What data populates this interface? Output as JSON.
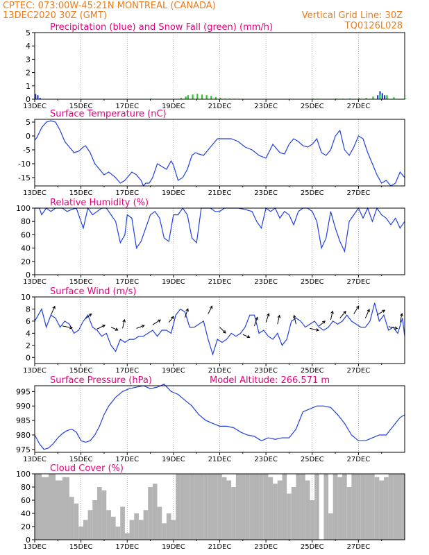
{
  "header": {
    "line1": "CPTEC:   073:00W-45:21N   MONTREAL (CANADA)",
    "line2_left": "13DEC2020 30Z (GMT)",
    "line2_right": "Vertical Grid Line: 30Z",
    "line3_right": "TQ0126L028"
  },
  "colors": {
    "header": "#e87d1e",
    "title": "#e6007e",
    "line": "#1f3fe0",
    "snow": "#22cc22",
    "precip": "#1f3fe0",
    "cloud": "#b4b4b4"
  },
  "chart_data": [
    {
      "id": "precip",
      "type": "bar",
      "title": "Precipitation (blue) and Snow Fall (green) (mm/h)",
      "ylim": [
        0,
        5
      ],
      "yticks": [
        0,
        1,
        2,
        3,
        4,
        5
      ],
      "xticks": [
        "13DEC",
        "15DEC",
        "17DEC",
        "19DEC",
        "21DEC",
        "23DEC",
        "25DEC",
        "27DEC"
      ],
      "series": [
        {
          "name": "Precipitation",
          "color": "#1f3fe0",
          "x": [
            0.0,
            0.1,
            0.2,
            14.8,
            14.9,
            15.0,
            15.1,
            15.2
          ],
          "values": [
            0.4,
            0.3,
            0.1,
            0.3,
            0.6,
            0.45,
            0.3,
            0.1
          ]
        },
        {
          "name": "Snow Fall",
          "color": "#22cc22",
          "x": [
            5.0,
            5.2,
            6.3,
            6.5,
            6.6,
            6.8,
            7.0,
            7.2,
            7.4,
            7.6,
            7.8,
            8.0,
            8.2,
            8.4,
            8.6,
            8.8,
            9.0,
            11.0,
            11.2,
            12.0,
            12.2,
            13.0,
            13.3,
            13.6,
            14.0,
            14.3,
            14.6,
            14.9,
            15.2,
            15.5,
            16.0
          ],
          "values": [
            0.05,
            0.03,
            0.1,
            0.2,
            0.3,
            0.35,
            0.4,
            0.35,
            0.3,
            0.25,
            0.15,
            0.1,
            0.05,
            0.05,
            0.04,
            0.03,
            0.02,
            0.03,
            0.02,
            0.05,
            0.04,
            0.05,
            0.04,
            0.06,
            0.08,
            0.1,
            0.2,
            0.35,
            0.3,
            0.15,
            0.05
          ]
        }
      ]
    },
    {
      "id": "temperature",
      "type": "line",
      "title": "Surface Temperature (nC)",
      "ylim": [
        -18,
        6
      ],
      "yticks": [
        5,
        0,
        -5,
        -10,
        -15
      ],
      "xticks": [
        "13DEC",
        "15DEC",
        "17DEC",
        "19DEC",
        "21DEC",
        "23DEC",
        "25DEC",
        "27DEC"
      ],
      "x": [
        0.0,
        0.1,
        0.3,
        0.5,
        0.7,
        0.9,
        1.1,
        1.3,
        1.5,
        1.7,
        1.9,
        2.1,
        2.2,
        2.4,
        2.6,
        2.8,
        3.0,
        3.2,
        3.5,
        3.7,
        3.9,
        4.2,
        4.4,
        4.6,
        4.7,
        4.8,
        4.95,
        5.1,
        5.3,
        5.5,
        5.7,
        5.9,
        6.0,
        6.2,
        6.4,
        6.6,
        6.8,
        6.95,
        7.1,
        7.3,
        7.5,
        7.7,
        7.9,
        8.2,
        8.5,
        8.8,
        9.1,
        9.4,
        9.7,
        10.0,
        10.3,
        10.6,
        10.8,
        11.0,
        11.2,
        11.4,
        11.6,
        11.8,
        12.0,
        12.2,
        12.4,
        12.6,
        12.8,
        13.0,
        13.2,
        13.4,
        13.6,
        13.8,
        14.0,
        14.2,
        14.4,
        14.6,
        14.8,
        15.0,
        15.2,
        15.4,
        15.6,
        15.8,
        16.0
      ],
      "values": [
        -1.5,
        -0.5,
        3,
        5,
        5.5,
        5,
        2,
        -2,
        -4,
        -6,
        -5.5,
        -4,
        -3.5,
        -6,
        -10,
        -12,
        -14,
        -13,
        -15,
        -17,
        -16,
        -13,
        -14,
        -16,
        -18,
        -17,
        -17,
        -15,
        -10,
        -11,
        -12,
        -9,
        -10.5,
        -16,
        -15,
        -12,
        -7,
        -6,
        -6.5,
        -7,
        -5,
        -3,
        -1,
        -1,
        -1,
        -2,
        -4,
        -5,
        -7,
        -8,
        -3,
        -6,
        -6.5,
        -3,
        -1,
        -2,
        -3.5,
        -4,
        -3,
        -1,
        -6,
        -7,
        -5,
        0,
        2,
        -5,
        -7,
        -4,
        0,
        -1,
        -6,
        -10,
        -14,
        -17,
        -16,
        -18,
        -17,
        -13,
        -15
      ]
    },
    {
      "id": "humidity",
      "type": "line",
      "title": "Relative Humidity (%)",
      "ylim": [
        0,
        100
      ],
      "yticks": [
        0,
        20,
        40,
        60,
        80,
        100
      ],
      "xticks": [
        "13DEC",
        "15DEC",
        "17DEC",
        "19DEC",
        "21DEC",
        "23DEC",
        "25DEC",
        "27DEC"
      ],
      "x": [
        0.0,
        0.2,
        0.3,
        0.5,
        0.7,
        0.9,
        1.0,
        1.2,
        1.4,
        1.6,
        1.8,
        2.0,
        2.1,
        2.3,
        2.5,
        2.7,
        2.9,
        3.1,
        3.3,
        3.5,
        3.7,
        3.9,
        4.0,
        4.2,
        4.4,
        4.6,
        4.8,
        5.0,
        5.2,
        5.4,
        5.6,
        5.8,
        6.0,
        6.2,
        6.4,
        6.6,
        6.8,
        7.0,
        7.2,
        7.4,
        7.6,
        7.8,
        8.0,
        8.2,
        8.5,
        8.8,
        9.1,
        9.4,
        9.6,
        9.8,
        10.0,
        10.2,
        10.4,
        10.6,
        10.8,
        11.0,
        11.2,
        11.4,
        11.6,
        11.8,
        12.0,
        12.2,
        12.4,
        12.6,
        12.8,
        13.0,
        13.2,
        13.4,
        13.6,
        13.8,
        14.0,
        14.2,
        14.4,
        14.6,
        14.8,
        15.0,
        15.2,
        15.4,
        15.6,
        15.8,
        16.0
      ],
      "values": [
        100,
        100,
        90,
        100,
        95,
        100,
        100,
        100,
        95,
        98,
        100,
        80,
        70,
        100,
        90,
        95,
        100,
        100,
        90,
        80,
        48,
        60,
        90,
        85,
        40,
        50,
        70,
        90,
        95,
        85,
        55,
        50,
        90,
        90,
        100,
        90,
        55,
        48,
        100,
        100,
        100,
        95,
        95,
        100,
        100,
        100,
        98,
        95,
        80,
        70,
        100,
        95,
        100,
        85,
        95,
        90,
        75,
        95,
        100,
        100,
        95,
        80,
        40,
        55,
        95,
        70,
        50,
        35,
        80,
        90,
        100,
        85,
        100,
        80,
        100,
        90,
        85,
        75,
        85,
        70,
        80
      ]
    },
    {
      "id": "wind",
      "type": "line",
      "title": "Surface Wind (m/s)",
      "ylim": [
        -1,
        10
      ],
      "yticks": [
        0,
        2,
        4,
        6,
        8,
        10
      ],
      "xticks": [
        "13DEC",
        "15DEC",
        "17DEC",
        "19DEC",
        "21DEC",
        "23DEC",
        "25DEC",
        "27DEC"
      ],
      "x": [
        0.0,
        0.3,
        0.5,
        0.7,
        0.9,
        1.1,
        1.3,
        1.5,
        1.7,
        1.9,
        2.1,
        2.3,
        2.5,
        2.7,
        2.9,
        3.1,
        3.3,
        3.5,
        3.7,
        3.9,
        4.1,
        4.3,
        4.5,
        4.7,
        4.9,
        5.1,
        5.3,
        5.5,
        5.7,
        5.9,
        6.1,
        6.3,
        6.5,
        6.7,
        6.9,
        7.1,
        7.3,
        7.5,
        7.7,
        7.9,
        8.1,
        8.3,
        8.5,
        8.7,
        8.9,
        9.1,
        9.3,
        9.5,
        9.7,
        9.9,
        10.1,
        10.3,
        10.5,
        10.7,
        10.9,
        11.1,
        11.3,
        11.5,
        11.7,
        11.9,
        12.1,
        12.3,
        12.5,
        12.7,
        12.9,
        13.1,
        13.3,
        13.5,
        13.7,
        13.9,
        14.1,
        14.3,
        14.5,
        14.7,
        14.9,
        15.1,
        15.3,
        15.5,
        15.7,
        15.9,
        16.0
      ],
      "values": [
        6,
        8,
        5,
        7,
        6.5,
        5,
        6,
        5.5,
        4,
        4.5,
        6,
        7,
        5,
        4.5,
        3.5,
        4,
        2,
        1,
        3,
        2.5,
        3,
        3,
        3.5,
        3.5,
        4,
        4.5,
        3.5,
        4.5,
        4.5,
        4,
        7,
        8,
        7.5,
        5,
        5,
        5.5,
        6,
        3,
        0.5,
        3,
        2.5,
        3,
        4,
        3.5,
        4,
        5,
        7,
        7,
        4,
        4.5,
        3.5,
        3,
        4,
        2,
        3,
        6,
        6.5,
        6,
        5,
        5.5,
        6,
        5,
        4.5,
        5,
        6,
        5.5,
        6,
        7,
        6,
        5.5,
        5,
        5,
        6,
        9,
        6,
        7,
        4.5,
        5,
        4,
        6.5,
        3.5
      ]
    },
    {
      "id": "pressure",
      "type": "line",
      "title": "Surface Pressure (hPa)",
      "subtitle": "Model Altitude: 266.571 m",
      "ylim": [
        974,
        997
      ],
      "yticks": [
        975,
        980,
        985,
        990,
        995
      ],
      "xticks": [
        "13DEC",
        "15DEC",
        "17DEC",
        "19DEC",
        "21DEC",
        "23DEC",
        "25DEC",
        "27DEC"
      ],
      "x": [
        0.0,
        0.2,
        0.4,
        0.6,
        0.8,
        1.0,
        1.2,
        1.4,
        1.6,
        1.8,
        2.0,
        2.2,
        2.4,
        2.6,
        2.8,
        3.0,
        3.2,
        3.5,
        3.8,
        4.1,
        4.4,
        4.7,
        5.0,
        5.3,
        5.6,
        5.9,
        6.2,
        6.5,
        6.8,
        7.1,
        7.4,
        7.7,
        8.0,
        8.3,
        8.6,
        8.9,
        9.2,
        9.5,
        9.8,
        10.1,
        10.4,
        10.7,
        11.0,
        11.3,
        11.6,
        11.9,
        12.2,
        12.5,
        12.8,
        13.1,
        13.4,
        13.7,
        14.0,
        14.3,
        14.6,
        14.9,
        15.2,
        15.5,
        15.8,
        16.0
      ],
      "values": [
        980,
        977,
        975,
        975.5,
        977,
        979,
        980.5,
        981.5,
        982,
        981,
        978,
        977.5,
        978,
        980,
        983,
        987,
        990,
        993,
        995,
        996,
        996.5,
        997,
        996,
        996.5,
        997.5,
        995,
        994,
        992,
        990,
        987,
        985,
        984,
        983,
        983,
        982.5,
        981,
        980,
        979.5,
        978,
        979,
        978.5,
        979,
        979,
        982,
        988,
        989,
        990,
        990,
        989.5,
        987,
        984,
        980,
        978,
        978,
        979,
        980,
        980,
        983,
        986,
        987
      ]
    },
    {
      "id": "cloud",
      "type": "area",
      "title": "Cloud Cover (%)",
      "ylim": [
        0,
        100
      ],
      "yticks": [
        0,
        20,
        40,
        60,
        80,
        100
      ],
      "xticks": [
        "13DEC",
        "15DEC",
        "17DEC",
        "19DEC",
        "21DEC",
        "23DEC",
        "25DEC",
        "27DEC"
      ],
      "x": [
        0.0,
        0.3,
        0.6,
        0.9,
        1.2,
        1.5,
        1.7,
        1.9,
        2.1,
        2.3,
        2.5,
        2.7,
        2.9,
        3.1,
        3.3,
        3.5,
        3.7,
        3.9,
        4.1,
        4.3,
        4.5,
        4.7,
        4.9,
        5.1,
        5.3,
        5.5,
        5.7,
        5.9,
        6.1,
        6.3,
        6.5,
        6.7,
        6.9,
        7.1,
        7.3,
        7.5,
        7.7,
        7.9,
        8.1,
        8.3,
        8.5,
        8.7,
        8.9,
        9.1,
        9.3,
        9.5,
        9.7,
        9.9,
        10.1,
        10.3,
        10.5,
        10.7,
        10.9,
        11.1,
        11.3,
        11.5,
        11.7,
        11.9,
        12.1,
        12.3,
        12.5,
        12.7,
        12.9,
        13.1,
        13.3,
        13.5,
        13.7,
        13.9,
        14.1,
        14.3,
        14.5,
        14.7,
        14.9,
        15.1,
        15.3,
        15.5,
        15.7,
        15.9,
        16.0
      ],
      "values": [
        100,
        95,
        100,
        90,
        95,
        65,
        55,
        20,
        30,
        45,
        60,
        80,
        75,
        45,
        35,
        20,
        50,
        10,
        30,
        40,
        30,
        45,
        80,
        85,
        50,
        25,
        40,
        30,
        100,
        100,
        100,
        100,
        100,
        100,
        100,
        100,
        100,
        100,
        95,
        90,
        80,
        100,
        100,
        100,
        100,
        100,
        100,
        100,
        95,
        85,
        90,
        100,
        70,
        80,
        100,
        100,
        90,
        60,
        100,
        0,
        100,
        40,
        100,
        95,
        100,
        80,
        100,
        100,
        100,
        100,
        100,
        95,
        90,
        95,
        100,
        100,
        100,
        100,
        100
      ]
    }
  ]
}
